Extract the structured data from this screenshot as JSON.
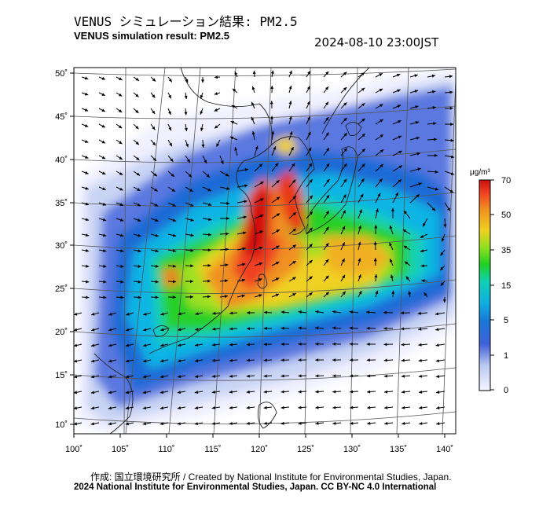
{
  "header": {
    "title_jp": "VENUS シミュレーション結果: PM2.5",
    "title_en": "VENUS simulation result: PM2.5",
    "datetime": "2024-08-10 23:00JST"
  },
  "map": {
    "lon_ticks": [
      "100˚",
      "105˚",
      "110˚",
      "115˚",
      "120˚",
      "125˚",
      "130˚",
      "135˚",
      "140˚"
    ],
    "lat_ticks": [
      "50˚",
      "45˚",
      "40˚",
      "35˚",
      "30˚",
      "25˚",
      "20˚",
      "15˚",
      "10˚"
    ],
    "lon_range": [
      100,
      142
    ],
    "lat_range": [
      8,
      50
    ]
  },
  "colorbar": {
    "unit": "μg/m³",
    "labels": [
      "70",
      "50",
      "35",
      "15",
      "5",
      "1",
      "0"
    ],
    "colors": [
      "#f0f0ff",
      "#b8c8f0",
      "#5070e0",
      "#2060d0",
      "#10a0e0",
      "#10d0c0",
      "#20d020",
      "#a0e020",
      "#f0d020",
      "#f09020",
      "#f04020",
      "#d01010"
    ]
  },
  "footer": {
    "credit": "作成: 国立環境研究所 / Created by National Institute for Environmental Studies, Japan.",
    "copyright": "2024 National Institute for Environmental Studies, Japan. CC BY-NC 4.0 International"
  }
}
